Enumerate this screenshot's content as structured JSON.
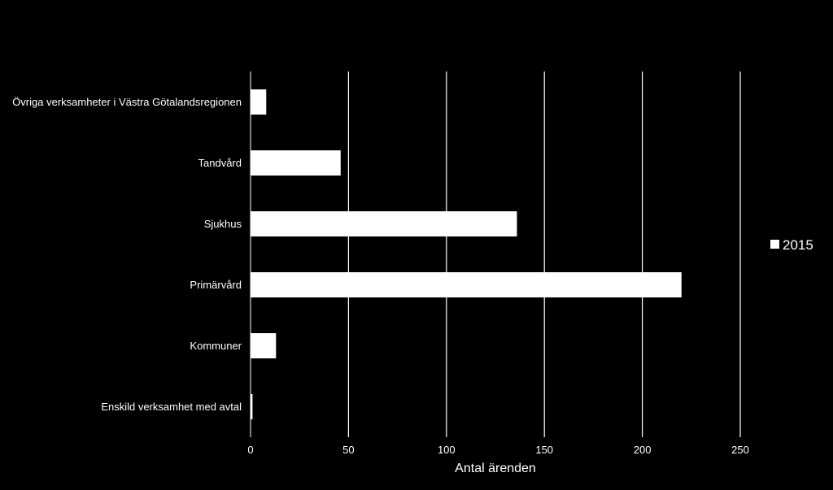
{
  "chart_data": {
    "type": "bar",
    "orientation": "horizontal",
    "categories": [
      "Övriga verksamheter i Västra Götalandsregionen",
      "Tandvård",
      "Sjukhus",
      "Primärvård",
      "Kommuner",
      "Enskild verksamhet med avtal"
    ],
    "series": [
      {
        "name": "2015",
        "values": [
          8,
          46,
          136,
          220,
          13,
          1
        ]
      }
    ],
    "xlabel": "Antal ärenden",
    "ylabel": "",
    "title": "",
    "xlim": [
      0,
      250
    ],
    "xticks": [
      0,
      50,
      100,
      150,
      200,
      250
    ],
    "grid": "vertical",
    "legend_position": "right",
    "colors": {
      "background": "#000000",
      "bar": "#ffffff",
      "grid": "#ffffff",
      "text": "#ffffff"
    }
  }
}
